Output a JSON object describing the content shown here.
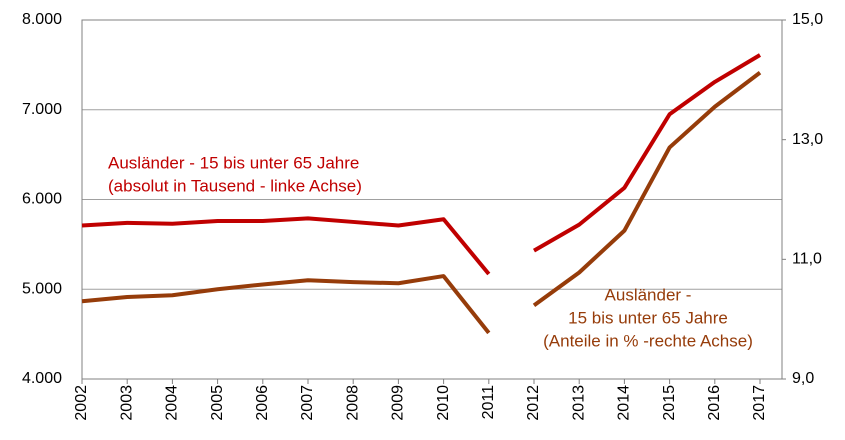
{
  "chart_data": {
    "type": "line",
    "categories": [
      "2002",
      "2003",
      "2004",
      "2005",
      "2006",
      "2007",
      "2008",
      "2009",
      "2010",
      "2011",
      "2012",
      "2013",
      "2014",
      "2015",
      "2016",
      "2017"
    ],
    "break_after": "2011",
    "series": [
      {
        "color": "#c00000",
        "axis": "y",
        "label_lines": [
          "Ausländer - 15 bis unter 65 Jahre",
          "(absolut in Tausend - linke Achse)"
        ],
        "values": [
          5710,
          5740,
          5730,
          5760,
          5760,
          5790,
          5750,
          5710,
          5780,
          5170,
          5430,
          5720,
          6130,
          6950,
          7310,
          7610
        ]
      },
      {
        "color": "#963c0a",
        "axis": "y2",
        "label_lines": [
          "Ausländer -",
          "15 bis unter 65 Jahre",
          "(Anteile in % -rechte Achse)"
        ],
        "values": [
          10.3,
          10.37,
          10.4,
          10.5,
          10.58,
          10.65,
          10.62,
          10.6,
          10.72,
          9.77,
          10.23,
          10.78,
          11.48,
          12.87,
          13.55,
          14.12
        ]
      }
    ],
    "ylim": [
      4000,
      8000
    ],
    "yticks": [
      {
        "value": 4000,
        "label": "4.000"
      },
      {
        "value": 5000,
        "label": "5.000"
      },
      {
        "value": 6000,
        "label": "6.000"
      },
      {
        "value": 7000,
        "label": "7.000"
      },
      {
        "value": 8000,
        "label": "8.000"
      }
    ],
    "y2lim": [
      9,
      15
    ],
    "y2ticks": [
      {
        "value": 9,
        "label": "9,0"
      },
      {
        "value": 11,
        "label": "11,0"
      },
      {
        "value": 13,
        "label": "13,0"
      },
      {
        "value": 15,
        "label": "15,0"
      }
    ],
    "grid": true
  }
}
